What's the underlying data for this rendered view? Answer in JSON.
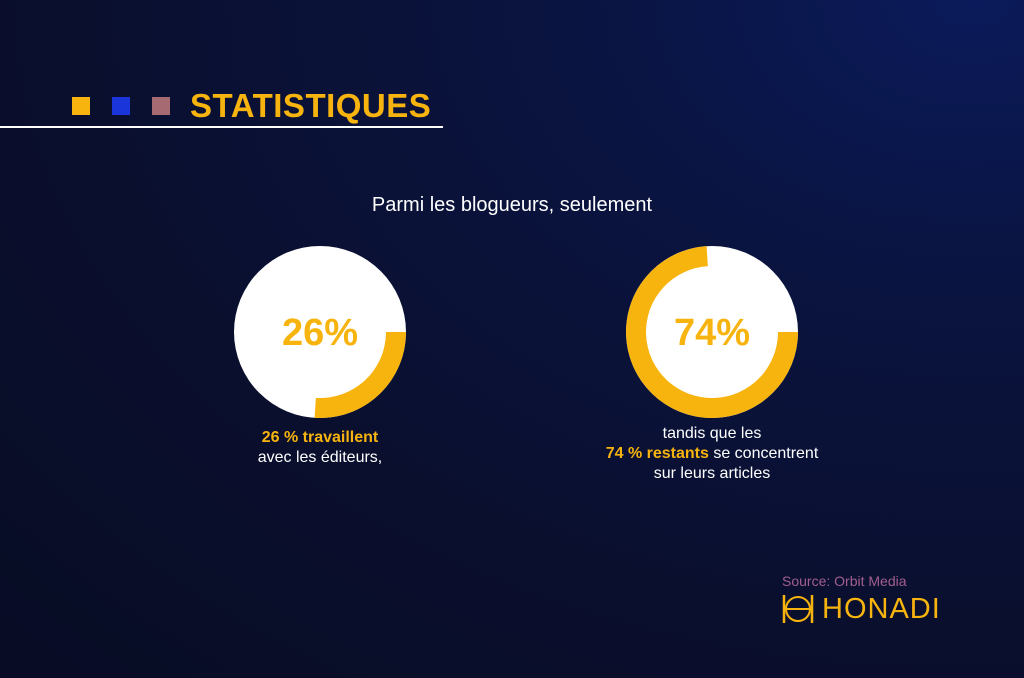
{
  "header": {
    "title": "STATISTIQUES",
    "squares": [
      {
        "name": "yellow-square",
        "color": "#f8b40e"
      },
      {
        "name": "blue-square",
        "color": "#1a35d9"
      },
      {
        "name": "mauve-square",
        "color": "#a56a72"
      }
    ]
  },
  "intro": "Parmi les blogueurs, seulement",
  "colors": {
    "accent": "#f8b40e",
    "ring_background": "#ffffff",
    "background": "#0a0f2e",
    "source": "#a35f8e"
  },
  "chart_data": [
    {
      "type": "pie",
      "label": "26%",
      "values": [
        26,
        74
      ],
      "highlight_value": 26,
      "caption_highlight": "26 % travaillent",
      "caption_lines": [
        "avec les éditeurs,"
      ]
    },
    {
      "type": "pie",
      "label": "74%",
      "values": [
        74,
        26
      ],
      "highlight_value": 74,
      "caption_pre": "tandis que les",
      "caption_highlight": "74 % restants",
      "caption_mid": " se concentrent",
      "caption_post": "sur leurs articles"
    }
  ],
  "footer": {
    "source": "Source: Orbit Media",
    "brand": "HONADI"
  }
}
